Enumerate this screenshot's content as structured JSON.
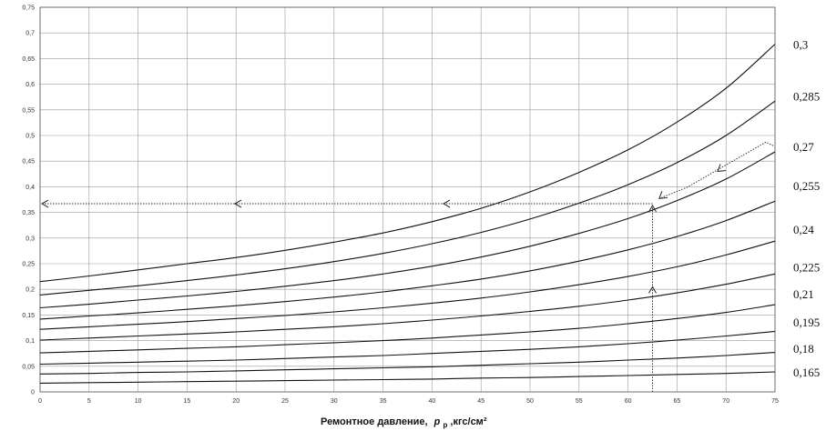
{
  "chart_data": {
    "type": "line",
    "xlabel": "Ремонтное давление, p_p ,кгс/см²",
    "xlabel_main": "Ремонтное давление,",
    "xlabel_var": "p",
    "xlabel_sub": "р",
    "xlabel_unit": ",кгс/см²",
    "ylabel": "",
    "xlim": [
      0,
      75
    ],
    "ylim": [
      0,
      0.75
    ],
    "grid": true,
    "x_ticks": [
      "0",
      "5",
      "10",
      "15",
      "20",
      "25",
      "30",
      "35",
      "40",
      "45",
      "50",
      "55",
      "60",
      "65",
      "70",
      "75"
    ],
    "y_ticks": [
      "0",
      "0,05",
      "0,1",
      "0,15",
      "0,2",
      "0,25",
      "0,3",
      "0,35",
      "0,4",
      "0,45",
      "0,5",
      "0,55",
      "0,6",
      "0,65",
      "0,7",
      "0,75"
    ],
    "x": [
      0,
      5,
      10,
      15,
      20,
      25,
      30,
      35,
      40,
      45,
      50,
      55,
      60,
      65,
      70,
      75
    ],
    "series": [
      {
        "name": "0,3",
        "values": [
          0.215,
          0.226,
          0.238,
          0.25,
          0.262,
          0.276,
          0.292,
          0.31,
          0.332,
          0.358,
          0.39,
          0.428,
          0.472,
          0.526,
          0.592,
          0.678
        ]
      },
      {
        "name": "0,285",
        "values": [
          0.189,
          0.198,
          0.207,
          0.217,
          0.228,
          0.24,
          0.254,
          0.27,
          0.289,
          0.311,
          0.337,
          0.368,
          0.404,
          0.447,
          0.5,
          0.567
        ]
      },
      {
        "name": "0,27",
        "values": [
          0.164,
          0.171,
          0.179,
          0.187,
          0.196,
          0.206,
          0.217,
          0.23,
          0.245,
          0.263,
          0.284,
          0.309,
          0.338,
          0.373,
          0.415,
          0.468
        ]
      },
      {
        "name": "0,255",
        "values": [
          0.142,
          0.148,
          0.154,
          0.161,
          0.168,
          0.176,
          0.185,
          0.195,
          0.207,
          0.22,
          0.236,
          0.255,
          0.277,
          0.303,
          0.334,
          0.372
        ]
      },
      {
        "name": "0,24",
        "values": [
          0.122,
          0.127,
          0.132,
          0.137,
          0.143,
          0.149,
          0.156,
          0.164,
          0.173,
          0.183,
          0.195,
          0.209,
          0.225,
          0.244,
          0.267,
          0.294
        ]
      },
      {
        "name": "0,225",
        "values": [
          0.101,
          0.105,
          0.109,
          0.113,
          0.117,
          0.122,
          0.127,
          0.133,
          0.14,
          0.148,
          0.157,
          0.167,
          0.179,
          0.193,
          0.21,
          0.23
        ]
      },
      {
        "name": "0,21",
        "values": [
          0.076,
          0.079,
          0.082,
          0.085,
          0.088,
          0.092,
          0.096,
          0.1,
          0.105,
          0.111,
          0.117,
          0.124,
          0.133,
          0.143,
          0.155,
          0.17
        ]
      },
      {
        "name": "0,195",
        "values": [
          0.054,
          0.056,
          0.058,
          0.06,
          0.062,
          0.065,
          0.068,
          0.071,
          0.075,
          0.079,
          0.083,
          0.088,
          0.094,
          0.101,
          0.109,
          0.118
        ]
      },
      {
        "name": "0,18",
        "values": [
          0.035,
          0.036,
          0.038,
          0.039,
          0.041,
          0.043,
          0.045,
          0.047,
          0.049,
          0.052,
          0.055,
          0.058,
          0.062,
          0.066,
          0.071,
          0.077
        ]
      },
      {
        "name": "0,165",
        "values": [
          0.017,
          0.018,
          0.019,
          0.02,
          0.021,
          0.022,
          0.023,
          0.024,
          0.025,
          0.027,
          0.028,
          0.03,
          0.032,
          0.034,
          0.036,
          0.039
        ]
      }
    ],
    "right_labels": [
      {
        "text": "0,3",
        "y": 0.676
      },
      {
        "text": "0,285",
        "y": 0.575
      },
      {
        "text": "0,27",
        "y": 0.477
      },
      {
        "text": "0,255",
        "y": 0.401
      },
      {
        "text": "0,24",
        "y": 0.316
      },
      {
        "text": "0,225",
        "y": 0.242
      },
      {
        "text": "0,21",
        "y": 0.19
      },
      {
        "text": "0,195",
        "y": 0.135
      },
      {
        "text": "0,18",
        "y": 0.083
      },
      {
        "text": "0,165",
        "y": 0.037
      }
    ],
    "example_guide": {
      "x_value": 62.5,
      "y_value": 0.367,
      "diagonal_from": [
        75,
        0.48
      ],
      "diagonal_to": [
        63,
        0.37
      ]
    }
  }
}
